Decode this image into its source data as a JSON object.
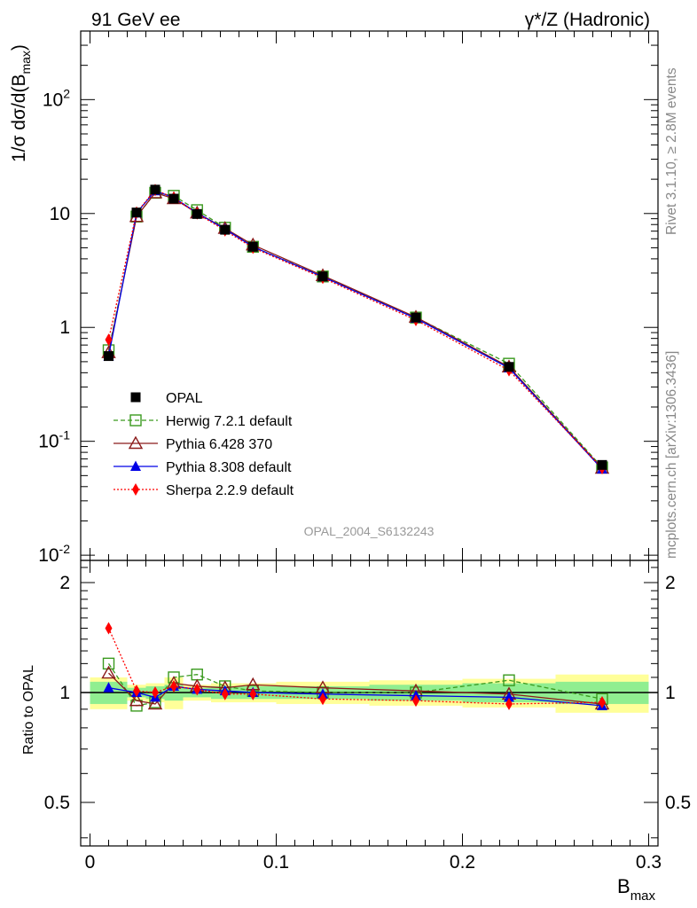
{
  "header": {
    "left": "91 GeV ee",
    "right": "γ*/Z (Hadronic)"
  },
  "side_text": {
    "rivet": "Rivet 3.1.10, ≥ 2.8M events",
    "mcplots": "mcplots.cern.ch [arXiv:1306.3436]"
  },
  "chart_data": {
    "type": "line",
    "analysis_id": "OPAL_2004_S6132243",
    "xlabel": "B_max",
    "ylabel": "1/σ dσ/d(B_max)",
    "ratio_ylabel": "Ratio to OPAL",
    "xlim": [
      -0.005,
      0.305
    ],
    "ylim_main": [
      0.009,
      400
    ],
    "ylim_ratio": [
      0.38,
      2.3
    ],
    "y_scale": "log",
    "x_ticks": [
      0,
      0.1,
      0.2,
      0.3
    ],
    "x_tick_labels": [
      "0",
      "0.1",
      "0.2",
      "0.3"
    ],
    "main_y_tick_labels": [
      "10^-2",
      "10^-1",
      "1",
      "10",
      "10^2"
    ],
    "ratio_y_ticks": [
      0.5,
      1,
      2
    ],
    "ratio_y_tick_labels": [
      "0.5",
      "1",
      "2"
    ],
    "x": [
      0.01,
      0.025,
      0.035,
      0.045,
      0.0575,
      0.0725,
      0.0875,
      0.125,
      0.175,
      0.225,
      0.275
    ],
    "bin_edges": [
      0,
      0.02,
      0.03,
      0.04,
      0.05,
      0.065,
      0.08,
      0.1,
      0.15,
      0.2,
      0.25,
      0.3
    ],
    "data": {
      "name": "OPAL",
      "values": [
        0.56,
        10.2,
        16.2,
        13.5,
        9.9,
        7.2,
        5.1,
        2.8,
        1.22,
        0.45,
        0.062
      ]
    },
    "ratio_band_inner": [
      0.07,
      0.03,
      0.04,
      0.05,
      0.03,
      0.04,
      0.04,
      0.04,
      0.05,
      0.06,
      0.07
    ],
    "ratio_band_outer": [
      0.1,
      0.05,
      0.06,
      0.1,
      0.05,
      0.06,
      0.06,
      0.07,
      0.08,
      0.09,
      0.12
    ],
    "series": [
      {
        "name": "Herwig 7.2.1 default",
        "color": "#3a9a1e",
        "marker": "open-square",
        "line": "dashed",
        "values": [
          0.63,
          9.4,
          15.2,
          14.3,
          10.7,
          7.5,
          5.1,
          2.8,
          1.22,
          0.48,
          0.059
        ],
        "ratio": [
          1.2,
          0.92,
          0.94,
          1.1,
          1.12,
          1.04,
          1.01,
          1.0,
          1.0,
          1.08,
          0.96
        ]
      },
      {
        "name": "Pythia 6.428 370",
        "color": "#8b1a1a",
        "marker": "open-triangle",
        "line": "solid",
        "values": [
          0.6,
          9.4,
          15.2,
          13.5,
          10.1,
          7.4,
          5.3,
          2.85,
          1.23,
          0.45,
          0.058
        ],
        "ratio": [
          1.13,
          0.95,
          0.93,
          1.06,
          1.04,
          1.03,
          1.05,
          1.03,
          1.01,
          0.99,
          0.93
        ]
      },
      {
        "name": "Pythia 8.308 default",
        "color": "#0000e6",
        "marker": "filled-triangle",
        "line": "solid",
        "values": [
          0.56,
          10.1,
          15.8,
          13.8,
          10.1,
          7.3,
          5.1,
          2.78,
          1.2,
          0.44,
          0.057
        ],
        "ratio": [
          1.03,
          1.0,
          0.97,
          1.04,
          1.02,
          1.01,
          1.0,
          0.99,
          0.98,
          0.97,
          0.92
        ]
      },
      {
        "name": "Sherpa 2.2.9 default",
        "color": "#ff0000",
        "marker": "filled-diamond",
        "line": "dotted",
        "values": [
          0.78,
          10.2,
          16.1,
          13.8,
          10.0,
          7.1,
          5.0,
          2.72,
          1.16,
          0.42,
          0.058
        ],
        "ratio": [
          1.5,
          1.01,
          1.0,
          1.04,
          1.02,
          0.99,
          0.99,
          0.96,
          0.95,
          0.93,
          0.94
        ]
      }
    ]
  }
}
